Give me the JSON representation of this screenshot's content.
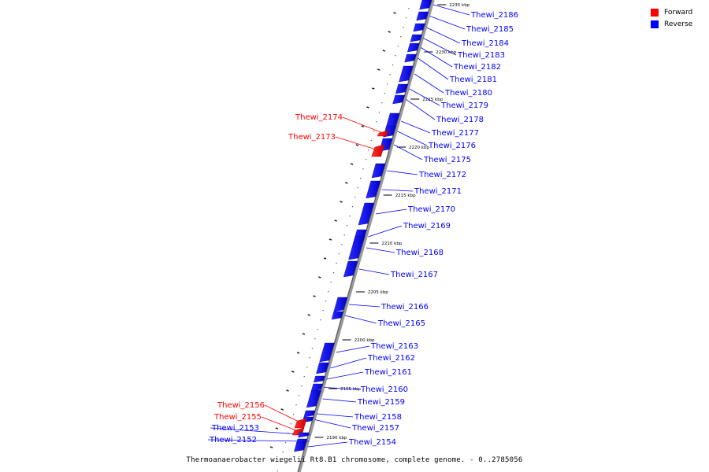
{
  "legend": {
    "forward": {
      "label": "Forward",
      "color": "#ff0000"
    },
    "reverse": {
      "label": "Reverse",
      "color": "#0000ff"
    }
  },
  "caption": "Thermoanaerobacter wiegelii Rt8.B1 chromosome, complete genome. - 0..2785056",
  "scale_ticks": [
    "2235 kbp",
    "2230 kbp",
    "2225 kbp",
    "2220 kbp",
    "2215 kbp",
    "2210 kbp",
    "2205 kbp",
    "2200 kbp",
    "2195 kbp",
    "2190 kbp"
  ],
  "genes": [
    {
      "name": "Thewi_2186",
      "strand": "reverse"
    },
    {
      "name": "Thewi_2185",
      "strand": "reverse"
    },
    {
      "name": "Thewi_2184",
      "strand": "reverse"
    },
    {
      "name": "Thewi_2183",
      "strand": "reverse"
    },
    {
      "name": "Thewi_2182",
      "strand": "reverse"
    },
    {
      "name": "Thewi_2181",
      "strand": "reverse"
    },
    {
      "name": "Thewi_2180",
      "strand": "reverse"
    },
    {
      "name": "Thewi_2179",
      "strand": "reverse"
    },
    {
      "name": "Thewi_2178",
      "strand": "reverse"
    },
    {
      "name": "Thewi_2177",
      "strand": "reverse"
    },
    {
      "name": "Thewi_2176",
      "strand": "reverse"
    },
    {
      "name": "Thewi_2175",
      "strand": "reverse"
    },
    {
      "name": "Thewi_2174",
      "strand": "forward"
    },
    {
      "name": "Thewi_2173",
      "strand": "forward"
    },
    {
      "name": "Thewi_2172",
      "strand": "reverse"
    },
    {
      "name": "Thewi_2171",
      "strand": "reverse"
    },
    {
      "name": "Thewi_2170",
      "strand": "reverse"
    },
    {
      "name": "Thewi_2169",
      "strand": "reverse"
    },
    {
      "name": "Thewi_2168",
      "strand": "reverse"
    },
    {
      "name": "Thewi_2167",
      "strand": "reverse"
    },
    {
      "name": "Thewi_2166",
      "strand": "reverse"
    },
    {
      "name": "Thewi_2165",
      "strand": "reverse"
    },
    {
      "name": "Thewi_2163",
      "strand": "reverse"
    },
    {
      "name": "Thewi_2162",
      "strand": "reverse"
    },
    {
      "name": "Thewi_2161",
      "strand": "reverse"
    },
    {
      "name": "Thewi_2160",
      "strand": "reverse"
    },
    {
      "name": "Thewi_2159",
      "strand": "reverse"
    },
    {
      "name": "Thewi_2158",
      "strand": "reverse"
    },
    {
      "name": "Thewi_2157",
      "strand": "reverse"
    },
    {
      "name": "Thewi_2156",
      "strand": "forward"
    },
    {
      "name": "Thewi_2155",
      "strand": "forward"
    },
    {
      "name": "Thewi_2153",
      "strand": "reverse"
    },
    {
      "name": "Thewi_2152",
      "strand": "reverse"
    },
    {
      "name": "Thewi_2154",
      "strand": "reverse"
    }
  ]
}
